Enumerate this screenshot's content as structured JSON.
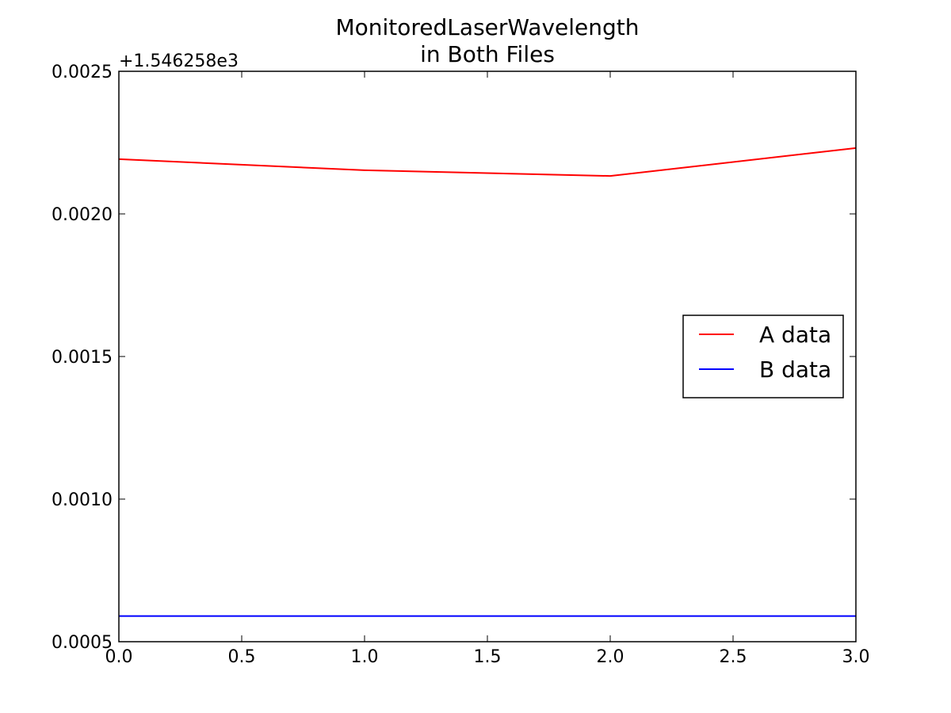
{
  "chart_data": {
    "type": "line",
    "title": "MonitoredLaserWavelength\nin Both Files",
    "y_offset_label": "+1.546258e3",
    "x": [
      0,
      1,
      2,
      3
    ],
    "series": [
      {
        "name": "A data",
        "color": "#ff0000",
        "values": [
          0.002192,
          0.002153,
          0.002133,
          0.002231
        ]
      },
      {
        "name": "B data",
        "color": "#0000ff",
        "values": [
          0.00059,
          0.00059,
          0.00059,
          0.00059
        ]
      }
    ],
    "xlim": [
      0,
      3
    ],
    "xticks": [
      {
        "value": 0,
        "label": "0.0"
      },
      0.5,
      {
        "value": 1,
        "label": "1.0"
      },
      1.5,
      {
        "value": 2,
        "label": "2.0"
      },
      2.5,
      {
        "value": 3,
        "label": "3.0"
      }
    ],
    "ylim": [
      0.0005,
      0.0025
    ],
    "yticks": [
      0.0005,
      {
        "value": 0.001,
        "label": "0.0010"
      },
      0.0015,
      {
        "value": 0.002,
        "label": "0.0020"
      },
      0.0025
    ],
    "legend": "center right"
  }
}
